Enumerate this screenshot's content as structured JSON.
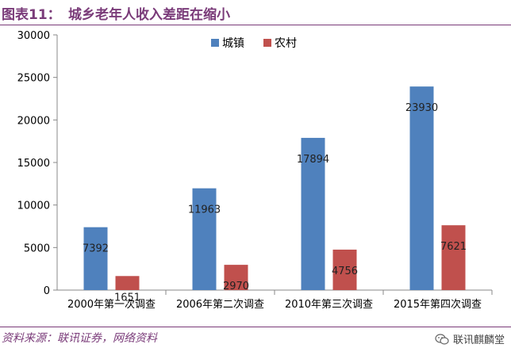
{
  "figure": {
    "label": "图表11：",
    "title": "城乡老年人收入差距在缩小"
  },
  "source": "资料来源：联讯证券，网络资料",
  "watermark": {
    "text": "联讯麒麟堂",
    "icon": "wechat-icon"
  },
  "colors": {
    "accent": "#7a3b79",
    "urban": "#4f81bd",
    "rural": "#c0504d"
  },
  "chart_data": {
    "type": "bar",
    "categories": [
      "2000年第一次调查",
      "2006年第二次调查",
      "2010年第三次调查",
      "2015年第四次调查"
    ],
    "series": [
      {
        "name": "城镇",
        "values": [
          7392,
          11963,
          17894,
          23930
        ]
      },
      {
        "name": "农村",
        "values": [
          1651,
          2970,
          4756,
          7621
        ]
      }
    ],
    "yticks": [
      0,
      5000,
      10000,
      15000,
      20000,
      25000,
      30000
    ],
    "ylim": [
      0,
      30000
    ],
    "legend": "top-center",
    "grid": false
  }
}
